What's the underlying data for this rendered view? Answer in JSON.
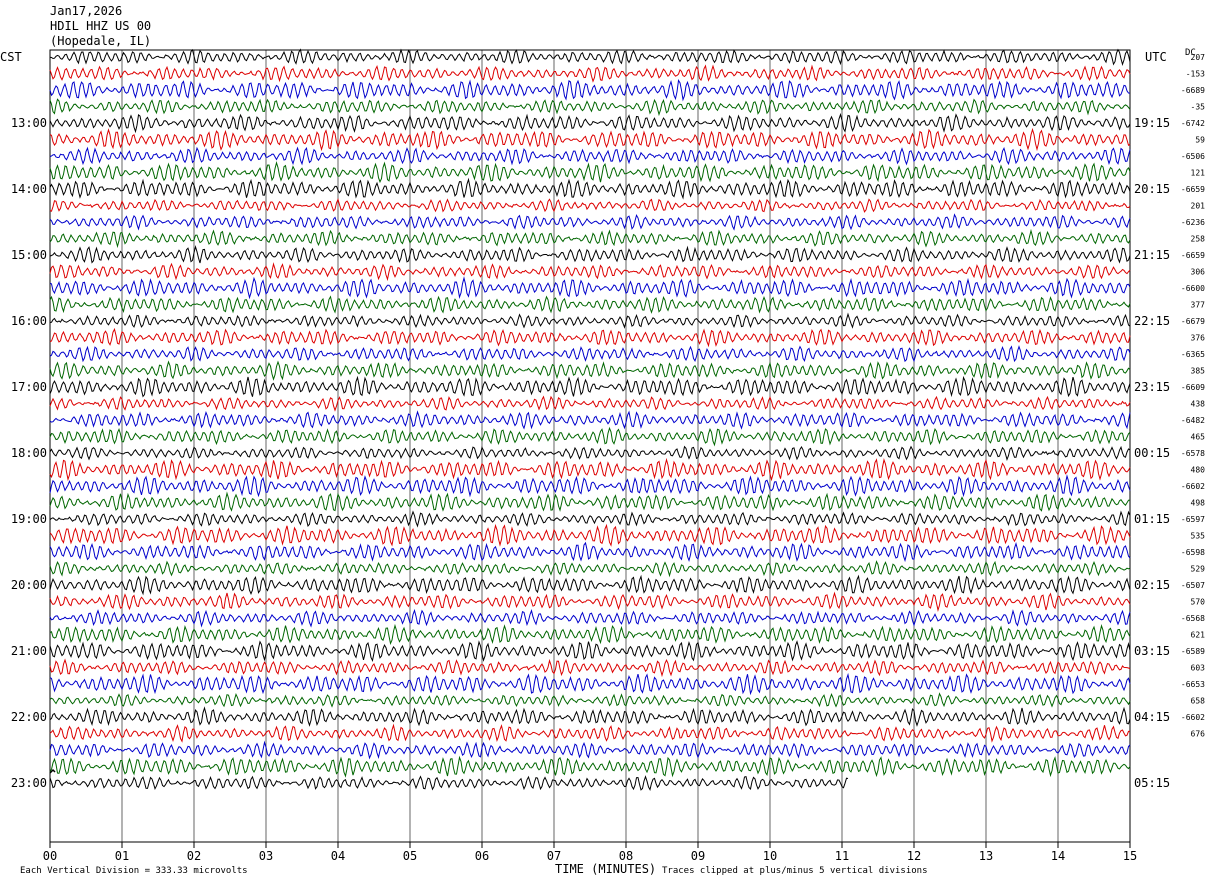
{
  "header": {
    "date": "Jan17,2026",
    "station": "HDIL HHZ US 00",
    "location": "(Hopedale, IL)"
  },
  "left_axis_title": "CST",
  "right_axis_title": "UTC",
  "dc_title": "DC",
  "footer": {
    "scale_note": "Each Vertical Division =  333.33 microvolts",
    "clip_note": "Traces clipped at plus/minus 5 vertical divisions"
  },
  "chart_data": {
    "type": "line",
    "title": "HDIL HHZ US 00 (Hopedale, IL) Jan17,2026",
    "xlabel": "TIME (MINUTES)",
    "xlim": [
      0,
      15
    ],
    "x_ticks": [
      "00",
      "01",
      "02",
      "03",
      "04",
      "05",
      "06",
      "07",
      "08",
      "09",
      "10",
      "11",
      "12",
      "13",
      "14",
      "15"
    ],
    "left_hour_labels": [
      "13:00",
      "14:00",
      "15:00",
      "16:00",
      "17:00",
      "18:00",
      "19:00",
      "20:00",
      "21:00",
      "22:00",
      "23:00"
    ],
    "right_hour_labels": [
      "19:15",
      "20:15",
      "21:15",
      "22:15",
      "23:15",
      "00:15",
      "01:15",
      "02:15",
      "03:15",
      "04:15",
      "05:15"
    ],
    "trace_colors": [
      "#000000",
      "#dd0000",
      "#0000cc",
      "#006600"
    ],
    "trace_count": 45,
    "complete_traces": 44,
    "last_trace_end_minutes": 11.1,
    "trace_duration_minutes": 15,
    "dc_offsets": [
      "207",
      "-153",
      "-6689",
      "-35",
      "-6742",
      "59",
      "-6506",
      "121",
      "-6659",
      "201",
      "-6236",
      "258",
      "-6659",
      "306",
      "-6600",
      "377",
      "-6679",
      "376",
      "-6365",
      "385",
      "-6609",
      "438",
      "-6482",
      "465",
      "-6578",
      "480",
      "-6602",
      "498",
      "-6597",
      "535",
      "-6598",
      "529",
      "-6507",
      "570",
      "-6568",
      "621",
      "-6589",
      "603",
      "-6653",
      "658",
      "-6602",
      "676"
    ]
  }
}
